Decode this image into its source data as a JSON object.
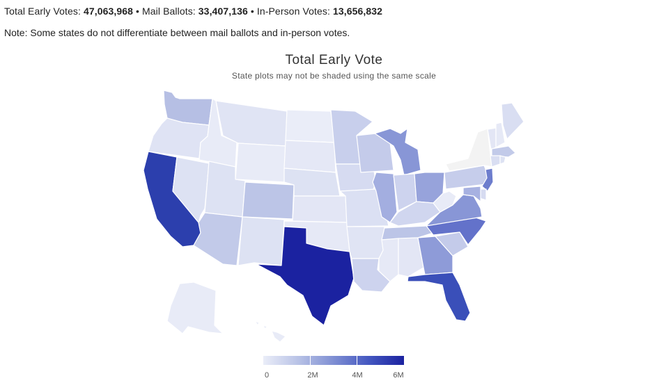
{
  "header": {
    "total_label": "Total Early Votes: ",
    "total_value": "47,063,968",
    "sep1": " • ",
    "mail_label": "Mail Ballots: ",
    "mail_value": "33,407,136",
    "sep2": " • ",
    "inperson_label": "In-Person Votes: ",
    "inperson_value": "13,656,832",
    "note": "Note: Some states do not differentiate between mail ballots and in-person votes."
  },
  "map": {
    "title": "Total Early Vote",
    "subtitle": "State plots may not be shaded using the same scale",
    "legend": {
      "min": 0,
      "max": 6000000,
      "ticks": [
        "0",
        "2M",
        "4M",
        "6M"
      ],
      "colors": [
        "#eaedf8",
        "#b8c2e6",
        "#7f8fd3",
        "#4457c0",
        "#1b22a0"
      ]
    },
    "shading": {
      "WA": "#b6bfe4",
      "OR": "#dfe3f4",
      "CA": "#2c3fad",
      "ID": "#e8ebf7",
      "NV": "#dde2f3",
      "MT": "#e0e4f4",
      "WY": "#e8ebf7",
      "UT": "#dde2f3",
      "AZ": "#c2cae9",
      "CO": "#bcc5e7",
      "NM": "#dde2f3",
      "ND": "#eaedf8",
      "SD": "#e5e8f6",
      "NE": "#dde2f3",
      "KS": "#e3e6f5",
      "OK": "#e6e9f6",
      "TX": "#1b22a0",
      "MN": "#c8cfec",
      "IA": "#d6dbf1",
      "MO": "#dbe0f3",
      "AR": "#e0e4f4",
      "LA": "#cdd3ee",
      "WI": "#c4cbea",
      "IL": "#a3aee0",
      "MI": "#8896d6",
      "IN": "#cdd3ee",
      "OH": "#97a3db",
      "KY": "#d0d6ef",
      "TN": "#bcc5e7",
      "MS": "#e6e9f6",
      "AL": "#e3e6f5",
      "GA": "#8e9bd8",
      "FL": "#3a4fb9",
      "SC": "#c4cbea",
      "NC": "#6372ca",
      "VA": "#8896d6",
      "WV": "#e8ebf7",
      "PA": "#c6cdeb",
      "NY": "#f3f3f3",
      "VT": "#e3e6f5",
      "NH": "#e6e9f6",
      "ME": "#d9def2",
      "MA": "#c2cae9",
      "CT": "#d9def2",
      "RI": "#dde2f3",
      "NJ": "#6d7dcd",
      "DE": "#d6dbf1",
      "MD": "#a7b1e1",
      "AK": "#e8ebf7",
      "HI": "#e8ebf7"
    }
  }
}
